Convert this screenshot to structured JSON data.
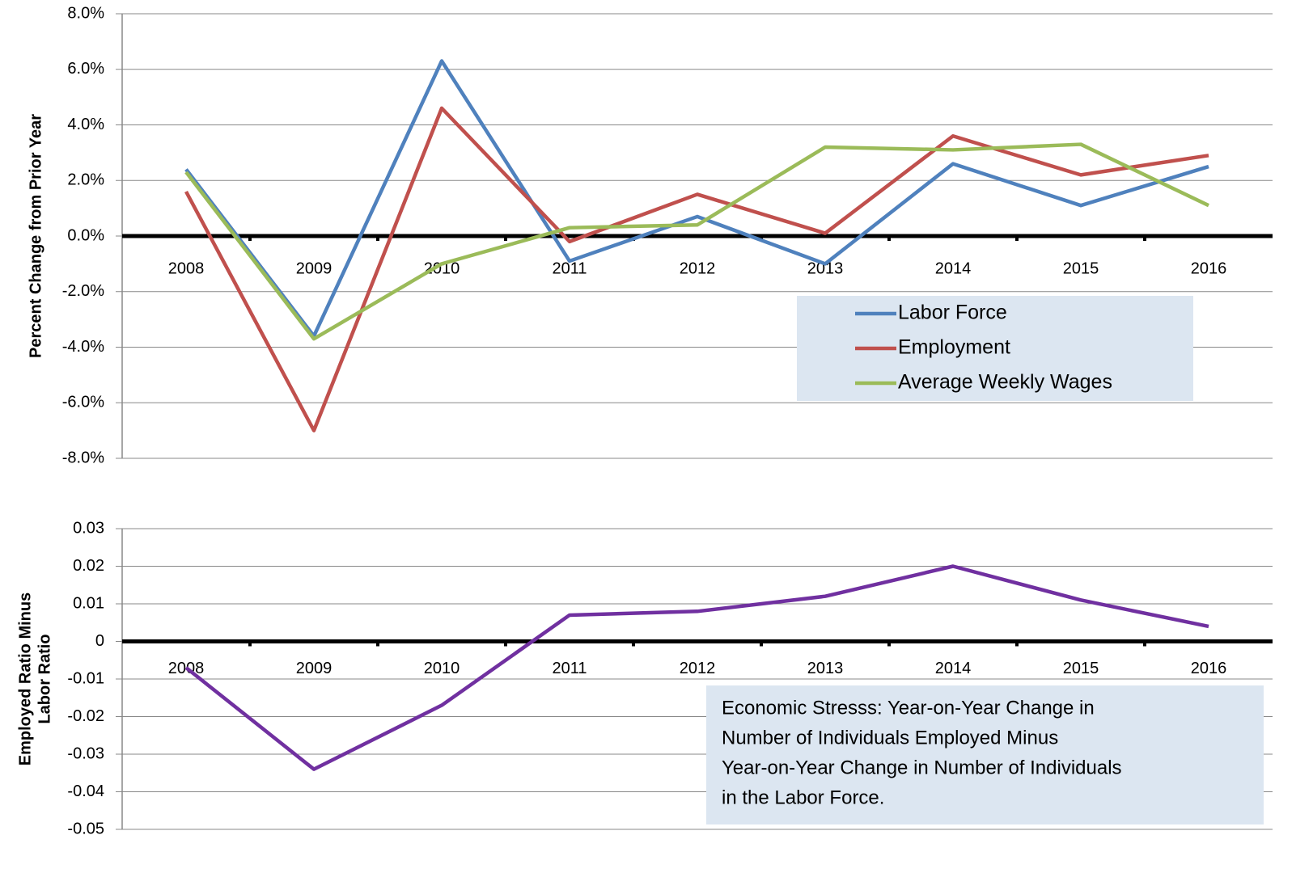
{
  "chart_data": [
    {
      "type": "line",
      "ylabel": "Percent Change from Prior Year",
      "categories": [
        "2008",
        "2009",
        "2010",
        "2011",
        "2012",
        "2013",
        "2014",
        "2015",
        "2016"
      ],
      "series": [
        {
          "name": "Labor Force",
          "color": "#4f81bd",
          "values": [
            2.4,
            -3.6,
            6.3,
            -0.9,
            0.7,
            -1.0,
            2.6,
            1.1,
            2.5
          ]
        },
        {
          "name": "Employment",
          "color": "#c0504d",
          "values": [
            1.6,
            -7.0,
            4.6,
            -0.2,
            1.5,
            0.1,
            3.6,
            2.2,
            2.9
          ]
        },
        {
          "name": "Average Weekly Wages",
          "color": "#9bbb59",
          "values": [
            2.3,
            -3.7,
            -1.0,
            0.3,
            0.4,
            3.2,
            3.1,
            3.3,
            1.1
          ]
        }
      ],
      "ylim": [
        -8,
        8
      ],
      "yticks": [
        {
          "value": -8,
          "label": "-8.0%"
        },
        {
          "value": -6,
          "label": "-6.0%"
        },
        {
          "value": -4,
          "label": "-4.0%"
        },
        {
          "value": -2,
          "label": "-2.0%"
        },
        {
          "value": 0,
          "label": "0.0%"
        },
        {
          "value": 2,
          "label": "2.0%"
        },
        {
          "value": 4,
          "label": "4.0%"
        },
        {
          "value": 6,
          "label": "6.0%"
        },
        {
          "value": 8,
          "label": "8.0%"
        }
      ],
      "grid": true,
      "legend": "center right"
    },
    {
      "type": "line",
      "ylabel": [
        "Employed Ratio Minus",
        "Labor Ratio"
      ],
      "categories": [
        "2008",
        "2009",
        "2010",
        "2011",
        "2012",
        "2013",
        "2014",
        "2015",
        "2016"
      ],
      "series": [
        {
          "color": "#7030a0",
          "values": [
            -0.007,
            -0.034,
            -0.017,
            0.007,
            0.008,
            0.012,
            0.02,
            0.011,
            0.004
          ]
        }
      ],
      "ylim": [
        -0.05,
        0.03
      ],
      "yticks": [
        -0.05,
        -0.04,
        -0.03,
        -0.02,
        -0.01,
        0,
        0.01,
        0.02,
        0.03
      ],
      "grid": true,
      "annotation": [
        "Economic Stresss: Year-on-Year Change in",
        "Number of Individuals Employed Minus",
        "Year-on-Year Change in Number of Individuals",
        "in the Labor Force."
      ]
    }
  ]
}
